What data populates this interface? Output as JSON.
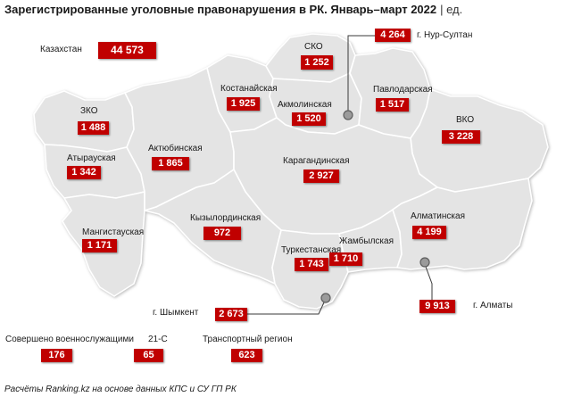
{
  "title": {
    "main": "Зарегистрированные уголовные правонарушения в РК. Январь–март 2022",
    "unit": "| ед."
  },
  "total": {
    "label": "Казахстан",
    "value": "44 573"
  },
  "regions": {
    "sko": {
      "label": "СКО",
      "value": "1 252"
    },
    "kostanay": {
      "label": "Костанайская",
      "value": "1 925"
    },
    "akmola": {
      "label": "Акмолинская",
      "value": "1 520"
    },
    "pavlodar": {
      "label": "Павлодарская",
      "value": "1 517"
    },
    "zko": {
      "label": "ЗКО",
      "value": "1 488"
    },
    "vko": {
      "label": "ВКО",
      "value": "3 228"
    },
    "aktobe": {
      "label": "Актюбинская",
      "value": "1 865"
    },
    "atyrau": {
      "label": "Атырауская",
      "value": "1 342"
    },
    "karaganda": {
      "label": "Карагандинская",
      "value": "2 927"
    },
    "kyzylorda": {
      "label": "Кызылординская",
      "value": "972"
    },
    "almaty_region": {
      "label": "Алматинская",
      "value": "4 199"
    },
    "mangystau": {
      "label": "Мангистауская",
      "value": "1 171"
    },
    "turkestan": {
      "label": "Туркестанская",
      "value": "1 743"
    },
    "zhambyl": {
      "label": "Жамбылская",
      "value": "1 710"
    }
  },
  "cities": {
    "nur_sultan": {
      "label": "г. Нур-Султан",
      "value": "4 264"
    },
    "shymkent": {
      "label": "г. Шымкент",
      "value": "2 673"
    },
    "almaty": {
      "label": "г. Алматы",
      "value": "9 913"
    }
  },
  "other": {
    "military": {
      "label": "Совершено военнослужащими",
      "value": "176"
    },
    "c21": {
      "label": "21-С",
      "value": "65"
    },
    "transport": {
      "label": "Транспортный регион",
      "value": "623"
    }
  },
  "source": "Расчёты Ranking.kz на основе данных КПС и СУ ГП РК",
  "colors": {
    "value_box": "#c00000",
    "value_text": "#ffffff",
    "region_fill": "#e4e4e4",
    "region_border": "#ffffff",
    "city_pin": "#9b9b9b"
  },
  "icons": {
    "city_marker": "city-pin-icon"
  }
}
